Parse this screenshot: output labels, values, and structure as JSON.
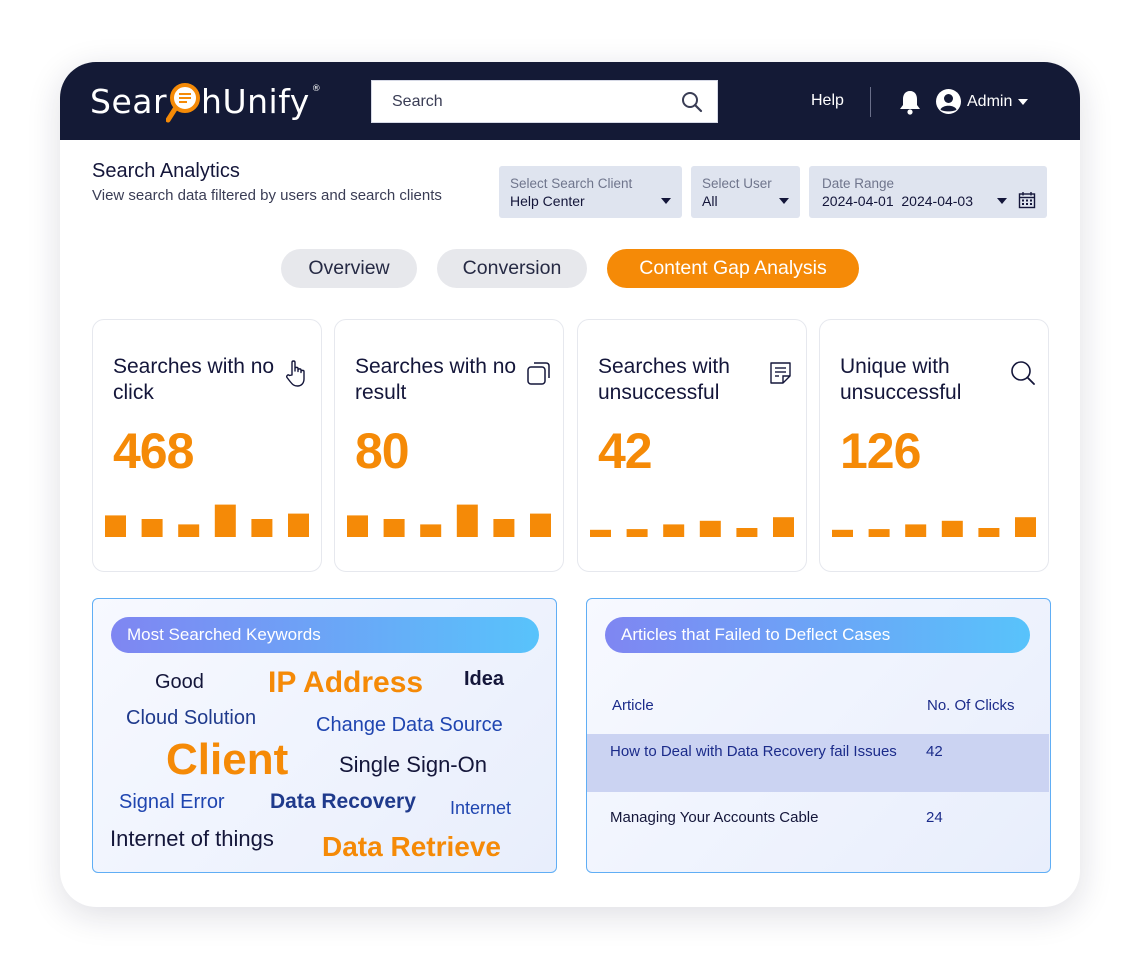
{
  "header": {
    "logo_text_left": "Sear",
    "logo_text_right": "hUnify",
    "logo_trademark": "®",
    "search_placeholder": "Search",
    "help_label": "Help",
    "user_label": "Admin",
    "icons": [
      "search-icon",
      "bell-icon",
      "user-avatar-icon",
      "chevron-down-icon"
    ]
  },
  "page": {
    "title": "Search Analytics",
    "subtitle": "View search data filtered by users and search clients"
  },
  "filters": {
    "client": {
      "label": "Select Search Client",
      "value": "Help Center"
    },
    "user": {
      "label": "Select User",
      "value": "All"
    },
    "date": {
      "label": "Date Range",
      "value": "2024-04-01  2024-04-03"
    }
  },
  "tabs": [
    {
      "label": "Overview",
      "active": false
    },
    {
      "label": "Conversion",
      "active": false
    },
    {
      "label": "Content Gap Analysis",
      "active": true
    }
  ],
  "cards": [
    {
      "title": "Searches with no click",
      "value": "468",
      "icon": "pointer-hand-icon",
      "trend": [
        0.6,
        0.5,
        0.35,
        0.9,
        0.5,
        0.65
      ]
    },
    {
      "title": "Searches with no result",
      "value": "80",
      "icon": "stacked-squares-icon",
      "trend": [
        0.6,
        0.5,
        0.35,
        0.9,
        0.5,
        0.65
      ]
    },
    {
      "title": "Searches with unsuccessful",
      "value": "42",
      "icon": "document-icon",
      "trend": [
        0.2,
        0.22,
        0.35,
        0.45,
        0.25,
        0.55
      ]
    },
    {
      "title": "Unique with unsuccessful",
      "value": "126",
      "icon": "search-icon",
      "trend": [
        0.2,
        0.22,
        0.35,
        0.45,
        0.25,
        0.55
      ]
    }
  ],
  "keywords": {
    "header": "Most Searched Keywords",
    "items": [
      "Good",
      "IP Address",
      "Idea",
      "Cloud Solution",
      "Change Data Source",
      "Client",
      "Single Sign-On",
      "Signal Error",
      "Data Recovery",
      "Internet",
      "Internet of things",
      "Data Retrieve"
    ]
  },
  "articles": {
    "header": "Articles that Failed to Deflect Cases",
    "col_article": "Article",
    "col_clicks": "No. Of Clicks",
    "rows": [
      {
        "article": "How to Deal with Data Recovery fail Issues",
        "clicks": "42"
      },
      {
        "article": "Managing Your Accounts Cable",
        "clicks": "24"
      }
    ]
  },
  "colors": {
    "navy": "#141a36",
    "accent_orange": "#f58a07",
    "keyword_blue": "#1f45b0",
    "panel_border": "#60aef5"
  }
}
